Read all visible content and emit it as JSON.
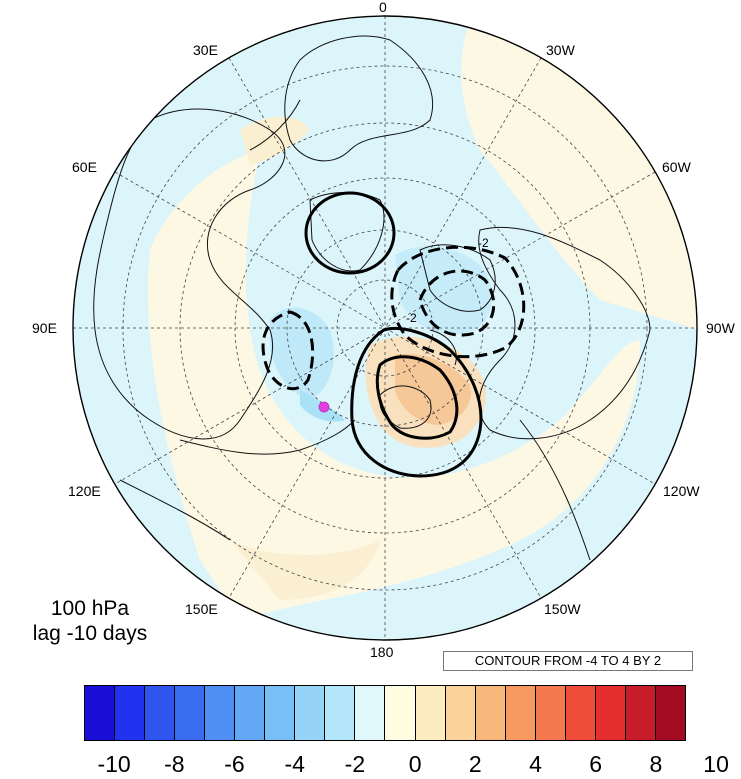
{
  "panel": {
    "level": "100 hPa",
    "lag": "lag -10 days"
  },
  "contour_note": "CONTOUR FROM -4 TO 4 BY 2",
  "longitude_labels": {
    "lon_0": "0",
    "lon_30w": "30W",
    "lon_60w": "60W",
    "lon_90w": "90W",
    "lon_120w": "120W",
    "lon_150w": "150W",
    "lon_180": "180",
    "lon_150e": "150E",
    "lon_120e": "120E",
    "lon_90e": "90E",
    "lon_60e": "60E",
    "lon_30e": "30E"
  },
  "contour_labels": [
    "-2",
    "-2"
  ],
  "colorbar": {
    "colors": [
      "#1a0fd6",
      "#2233f0",
      "#2e55ee",
      "#3a6cf0",
      "#4f8ef3",
      "#63a8f5",
      "#79bff7",
      "#95d4f7",
      "#b3e6fb",
      "#e0f8fb",
      "#fefde0",
      "#fcecc0",
      "#fbd29a",
      "#f8b87c",
      "#f69a62",
      "#f4794f",
      "#f04c3a",
      "#e52e2e",
      "#c71d2a",
      "#a30b22"
    ],
    "labels": [
      "-10",
      "-8",
      "-6",
      "-4",
      "-2",
      "0",
      "2",
      "4",
      "6",
      "8",
      "10"
    ]
  },
  "colors": {
    "background_negative": "#dcf5fb",
    "background_positive": "#fdf8e4",
    "light_blue": "#bfe9f8",
    "light_orange": "#f9e1bf",
    "orange": "#f6c898",
    "marker": "#e040e0"
  }
}
